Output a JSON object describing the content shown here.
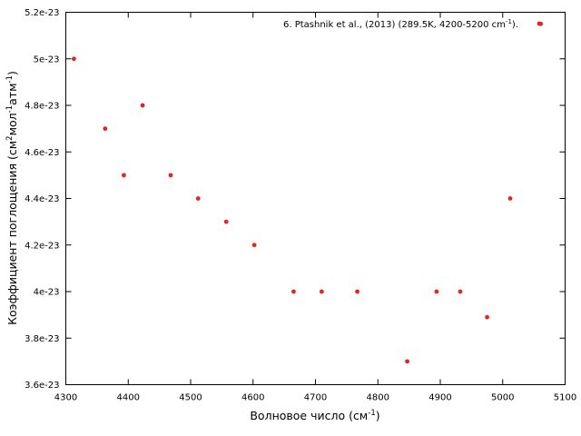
{
  "chart_data": {
    "type": "scatter",
    "xlabel": {
      "main": "Волновое число (см",
      "sup": "-1",
      "tail": ")"
    },
    "ylabel": {
      "p1": "Коэффициент поглощения (см",
      "s1": "2",
      "p2": "мол",
      "s2": "-1",
      "p3": "атм",
      "s3": "-1",
      "p4": ")"
    },
    "xlim": [
      4300,
      5100
    ],
    "ylim": [
      3.6e-23,
      5.2e-23
    ],
    "xticks": [
      4300,
      4400,
      4500,
      4600,
      4700,
      4800,
      4900,
      5000,
      5100
    ],
    "xtick_labels": [
      "4300",
      "4400",
      "4500",
      "4600",
      "4700",
      "4800",
      "4900",
      "5000",
      "5100"
    ],
    "yticks": [
      3.6e-23,
      3.8e-23,
      4e-23,
      4.2e-23,
      4.4e-23,
      4.6e-23,
      4.8e-23,
      5e-23,
      5.2e-23
    ],
    "ytick_labels": [
      "3.6e-23",
      "3.8e-23",
      "4e-23",
      "4.2e-23",
      "4.4e-23",
      "4.6e-23",
      "4.8e-23",
      "5e-23",
      "5.2e-23"
    ],
    "grid": false,
    "legend_position": "top-right",
    "series": [
      {
        "name": "6. Ptashnik et al., (2013) (289.5K, 4200-5200 cm",
        "name_sup": "-1",
        "name_tail": ").",
        "color": "#e3261f",
        "x": [
          4313,
          4363,
          4393,
          4423,
          4468,
          4512,
          4557,
          4602,
          4665,
          4710,
          4767,
          4847,
          4894,
          4932,
          4975,
          5012,
          5061
        ],
        "y": [
          5e-23,
          4.7e-23,
          4.5e-23,
          4.8e-23,
          4.5e-23,
          4.4e-23,
          4.3e-23,
          4.2e-23,
          4e-23,
          4e-23,
          4e-23,
          3.7e-23,
          4e-23,
          4e-23,
          3.89e-23,
          4.4e-23,
          5.15e-23
        ]
      }
    ]
  }
}
